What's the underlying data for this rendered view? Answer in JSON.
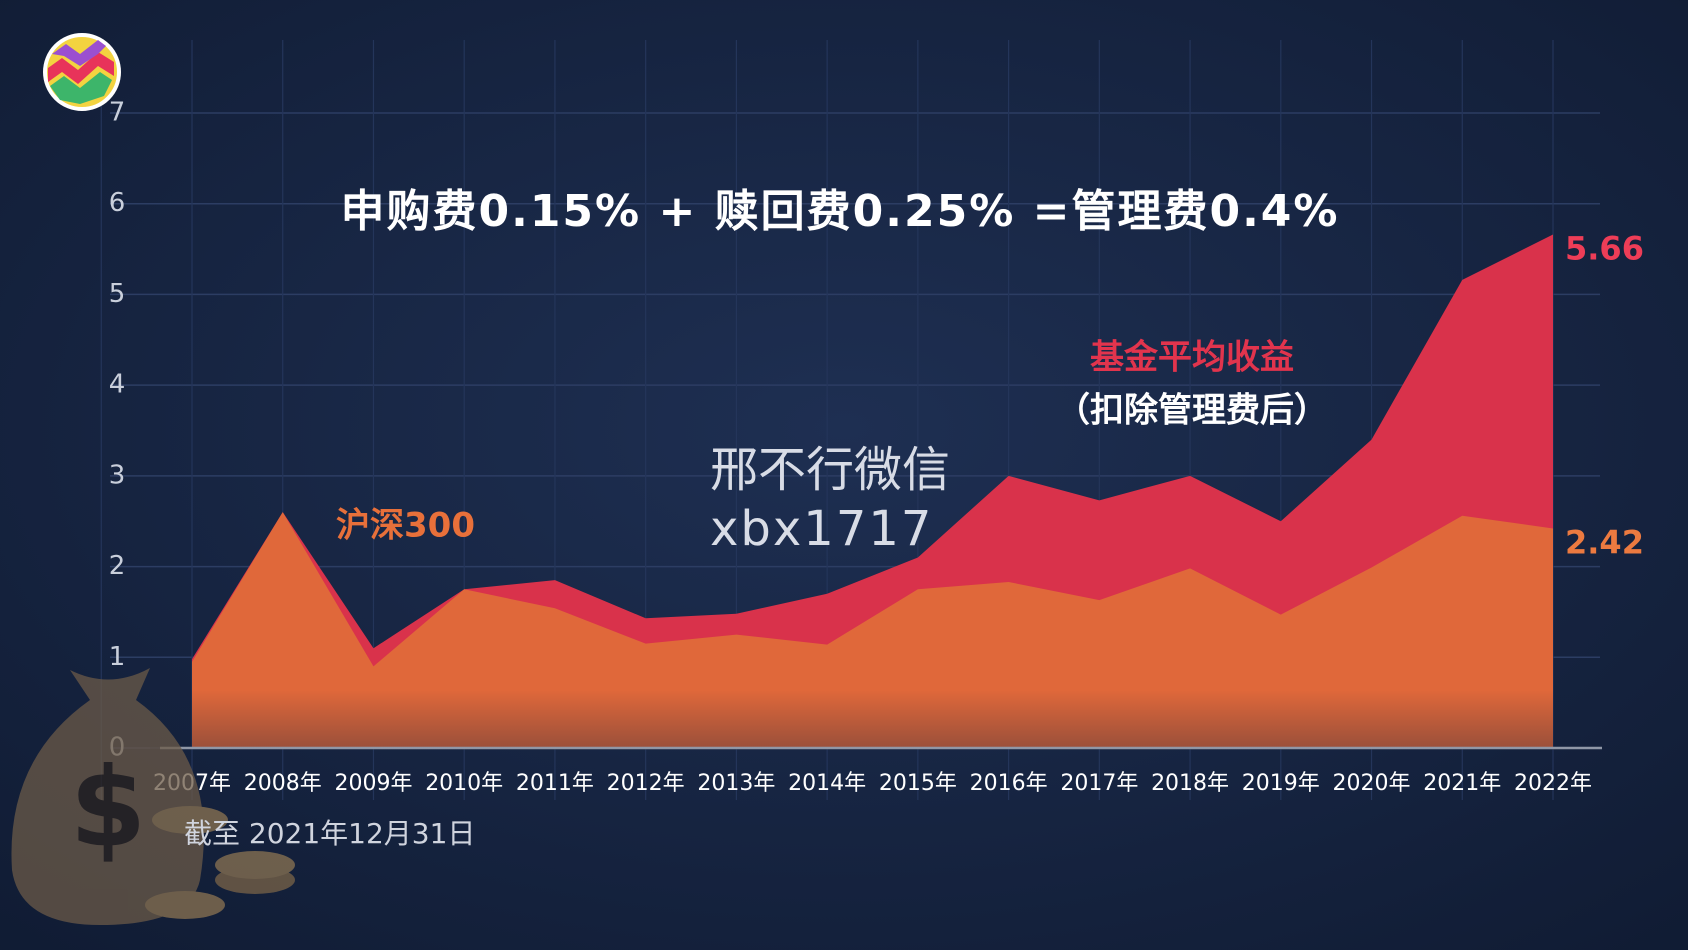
{
  "chart_data": {
    "type": "area",
    "title": "申购费0.15% +  赎回费0.25% =管理费0.4%",
    "categories": [
      "2007年",
      "2008年",
      "2009年",
      "2010年",
      "2011年",
      "2012年",
      "2013年",
      "2014年",
      "2015年",
      "2016年",
      "2017年",
      "2018年",
      "2019年",
      "2020年",
      "2021年",
      "2022年"
    ],
    "series": [
      {
        "name": "基金平均收益",
        "color": "#d9324b",
        "values": [
          0.98,
          2.6,
          1.1,
          1.75,
          1.85,
          1.43,
          1.48,
          1.7,
          2.1,
          3.0,
          2.73,
          3.0,
          2.5,
          3.4,
          5.16,
          5.66
        ]
      },
      {
        "name": "沪深300",
        "color": "#e0683a",
        "values": [
          0.95,
          2.6,
          0.9,
          1.75,
          1.54,
          1.15,
          1.25,
          1.14,
          1.75,
          1.83,
          1.63,
          1.98,
          1.47,
          1.99,
          2.56,
          2.42
        ]
      }
    ],
    "series_note": "（扣除管理费后）",
    "ylim": [
      0,
      7
    ],
    "yticks": [
      0,
      1,
      2,
      3,
      4,
      5,
      6,
      7
    ],
    "grid": true,
    "footnote": "截至 2021年12月31日",
    "watermark": [
      "邢不行微信",
      "xbx1717"
    ]
  }
}
